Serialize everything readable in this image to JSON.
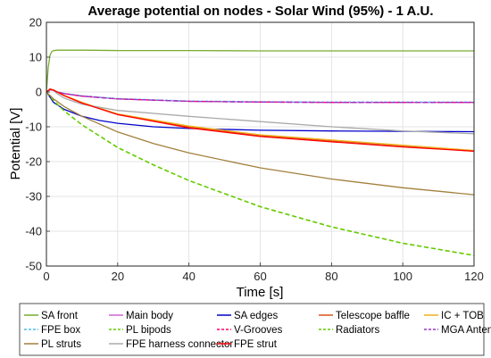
{
  "chart_data": {
    "type": "line",
    "title": "Average potential on nodes - Solar Wind (95%) - 1 A.U.",
    "xlabel": "Time [s]",
    "ylabel": "Potential [V]",
    "xlim": [
      0,
      120
    ],
    "ylim": [
      -50,
      20
    ],
    "xticks": [
      0,
      20,
      40,
      60,
      80,
      100,
      120
    ],
    "yticks": [
      20,
      10,
      0,
      -10,
      -20,
      -30,
      -40,
      -50
    ],
    "grid": true,
    "legend_position": "bottom",
    "series": [
      {
        "name": "SA front",
        "color": "#77ac30",
        "dash": "",
        "x": [
          0,
          0.5,
          1,
          1.5,
          2,
          3,
          5,
          10,
          20,
          40,
          60,
          80,
          100,
          120
        ],
        "y": [
          0,
          7,
          10.5,
          11.6,
          11.9,
          12.0,
          12.0,
          12.0,
          11.9,
          11.9,
          11.8,
          11.8,
          11.8,
          11.8
        ]
      },
      {
        "name": "Main body",
        "color": "#cc66cc",
        "dash": "",
        "x": [
          0,
          1,
          2,
          3,
          5,
          10,
          20,
          40,
          60,
          80,
          100,
          120
        ],
        "y": [
          0,
          0.6,
          0.5,
          0,
          -0.5,
          -1.2,
          -2.0,
          -2.7,
          -2.9,
          -3.0,
          -3.0,
          -3.0
        ]
      },
      {
        "name": "SA edges",
        "color": "#0000cc",
        "dash": "",
        "x": [
          0,
          1,
          2,
          5,
          10,
          15,
          20,
          30,
          40,
          60,
          80,
          100,
          120
        ],
        "y": [
          0,
          -1.5,
          -3.0,
          -5.0,
          -7.0,
          -8.2,
          -9.0,
          -10.0,
          -10.5,
          -11.0,
          -11.2,
          -11.3,
          -11.4
        ]
      },
      {
        "name": "Telescope baffle",
        "color": "#d95319",
        "dash": "",
        "x": [
          0,
          1,
          2,
          3,
          5,
          10,
          20,
          40,
          60,
          80,
          100,
          120
        ],
        "y": [
          0,
          0.9,
          0.6,
          0,
          -1.0,
          -3.0,
          -6.5,
          -10.0,
          -12.5,
          -14.0,
          -15.5,
          -17.0
        ]
      },
      {
        "name": "IC + TOB",
        "color": "#edb120",
        "dash": "",
        "x": [
          0,
          1,
          2,
          3,
          5,
          10,
          20,
          40,
          60,
          80,
          100,
          120
        ],
        "y": [
          0,
          0.8,
          0.5,
          0,
          -1.0,
          -3.0,
          -6.3,
          -9.8,
          -12.3,
          -13.8,
          -15.3,
          -16.8
        ]
      },
      {
        "name": "FPE box",
        "color": "#4dbeee",
        "dash": "3 2",
        "x": [
          0,
          1,
          2,
          3,
          5,
          10,
          20,
          40,
          60,
          80,
          100,
          120
        ],
        "y": [
          0,
          0.7,
          0.5,
          0,
          -0.4,
          -1.1,
          -1.9,
          -2.6,
          -2.8,
          -2.9,
          -2.9,
          -2.9
        ]
      },
      {
        "name": "PL bipods",
        "color": "#66cc00",
        "dash": "5 3",
        "x": [
          0,
          2,
          5,
          10,
          20,
          30,
          40,
          60,
          80,
          100,
          120
        ],
        "y": [
          0,
          -2.5,
          -5.5,
          -9.5,
          -16.0,
          -21.0,
          -25.5,
          -33.0,
          -38.8,
          -43.5,
          -47.0
        ]
      },
      {
        "name": "V-Grooves",
        "color": "#ff0066",
        "dash": "5 3",
        "x": [
          0,
          1,
          2,
          3,
          5,
          10,
          20,
          40,
          60,
          80,
          100,
          120
        ],
        "y": [
          0,
          0.7,
          0.5,
          0,
          -0.5,
          -1.2,
          -2.0,
          -2.7,
          -2.9,
          -3.0,
          -3.0,
          -3.0
        ]
      },
      {
        "name": "Radiators",
        "color": "#66cc00",
        "dash": "5 3",
        "x": [
          0,
          2,
          5,
          10,
          20,
          30,
          40,
          60,
          80,
          100,
          120
        ],
        "y": [
          0,
          -2.4,
          -5.4,
          -9.4,
          -15.9,
          -20.9,
          -25.4,
          -32.9,
          -38.7,
          -43.4,
          -46.9
        ]
      },
      {
        "name": "MGA Antenna",
        "color": "#9933cc",
        "dash": "6 3",
        "x": [
          0,
          1,
          2,
          3,
          5,
          10,
          20,
          40,
          60,
          80,
          100,
          120
        ],
        "y": [
          0,
          0.6,
          0.4,
          0,
          -0.5,
          -1.2,
          -2.0,
          -2.7,
          -2.9,
          -3.0,
          -3.0,
          -3.0
        ]
      },
      {
        "name": "PL struts",
        "color": "#a2803c",
        "dash": "",
        "x": [
          0,
          2,
          5,
          10,
          20,
          30,
          40,
          60,
          80,
          100,
          120
        ],
        "y": [
          0,
          -2.0,
          -4.2,
          -7.0,
          -11.5,
          -14.8,
          -17.5,
          -21.8,
          -25.0,
          -27.5,
          -29.5
        ]
      },
      {
        "name": "FPE harness connector",
        "color": "#aaaaaa",
        "dash": "",
        "x": [
          0,
          1,
          2,
          3,
          5,
          10,
          20,
          40,
          60,
          80,
          100,
          120
        ],
        "y": [
          0,
          0.7,
          0.4,
          -0.5,
          -1.8,
          -3.5,
          -5.3,
          -7.0,
          -8.5,
          -10.0,
          -11.2,
          -12.0
        ]
      },
      {
        "name": "FPE strut",
        "color": "#ff0000",
        "dash": "",
        "x": [
          0,
          1,
          2,
          3,
          5,
          10,
          20,
          40,
          60,
          80,
          100,
          120
        ],
        "y": [
          0,
          0.8,
          0.5,
          0,
          -1.1,
          -3.2,
          -6.5,
          -10.3,
          -12.8,
          -14.3,
          -15.8,
          -17.0
        ]
      }
    ]
  }
}
